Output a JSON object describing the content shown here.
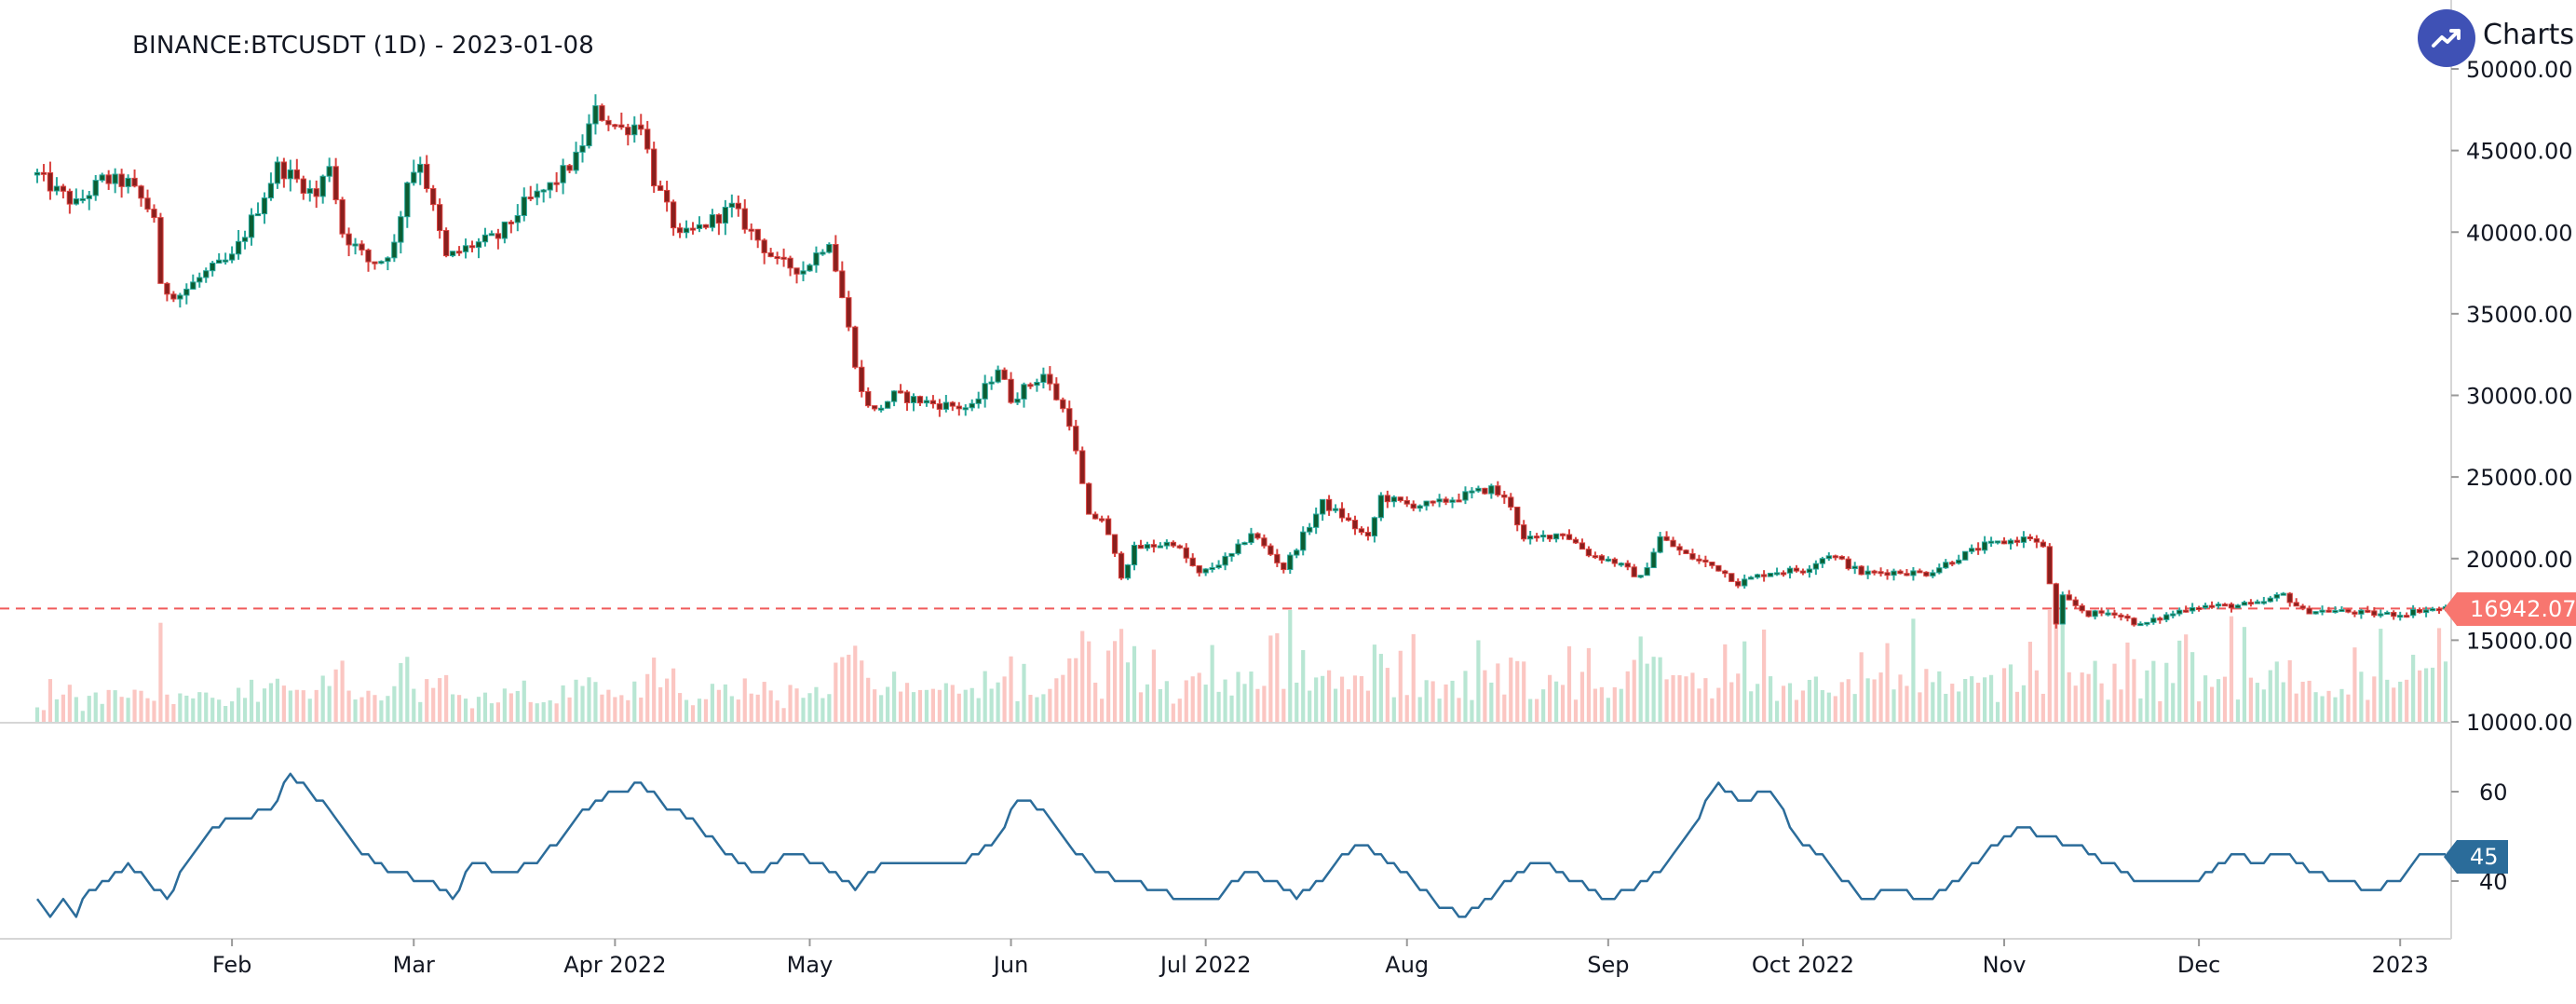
{
  "header": {
    "title": "BINANCE:BTCUSDT (1D) - 2023-01-08",
    "logo_text": "Charts p",
    "logo_icon": "trend-up-icon"
  },
  "colors": {
    "up": "#26a69a",
    "up_body": "#0b5e33",
    "down": "#d9413e",
    "down_body": "#8a1f1d",
    "vol_up": "#b8e6d3",
    "vol_down": "#fbc6c2",
    "last_price_line": "#f05a5a",
    "indicator": "#2b6c9a",
    "logo_bg": "#3f51b5"
  },
  "price_badge": "16942.07",
  "indicator_badge": "45",
  "chart_data": [
    {
      "type": "candlestick",
      "title": "BINANCE:BTCUSDT (1D) - 2023-01-08",
      "x_ticks": [
        "Feb",
        "Mar",
        "Apr 2022",
        "May",
        "Jun",
        "Jul 2022",
        "Aug",
        "Sep",
        "Oct 2022",
        "Nov",
        "Dec",
        "2023"
      ],
      "x_tick_dates": [
        "2022-02-01",
        "2022-03-01",
        "2022-04-01",
        "2022-05-01",
        "2022-06-01",
        "2022-07-01",
        "2022-08-01",
        "2022-09-01",
        "2022-10-01",
        "2022-11-01",
        "2022-12-01",
        "2023-01-01"
      ],
      "x_range": [
        "2022-01-02",
        "2023-01-08"
      ],
      "y_ticks": [
        "50000.00",
        "45000.00",
        "40000.00",
        "35000.00",
        "30000.00",
        "25000.00",
        "20000.00",
        "15000.00",
        "10000.00"
      ],
      "ylim": [
        10000,
        50000
      ],
      "last_price": 16942.07,
      "close_keypoints": [
        [
          "2022-01-02",
          43500
        ],
        [
          "2022-01-05",
          42500
        ],
        [
          "2022-01-08",
          41700
        ],
        [
          "2022-01-12",
          43200
        ],
        [
          "2022-01-16",
          43000
        ],
        [
          "2022-01-20",
          41000
        ],
        [
          "2022-01-21",
          36500
        ],
        [
          "2022-01-24",
          36200
        ],
        [
          "2022-01-28",
          37500
        ],
        [
          "2022-02-01",
          38400
        ],
        [
          "2022-02-05",
          41500
        ],
        [
          "2022-02-08",
          44000
        ],
        [
          "2022-02-10",
          43500
        ],
        [
          "2022-02-14",
          42200
        ],
        [
          "2022-02-16",
          44300
        ],
        [
          "2022-02-18",
          40000
        ],
        [
          "2022-02-22",
          38200
        ],
        [
          "2022-02-24",
          38300
        ],
        [
          "2022-02-26",
          39200
        ],
        [
          "2022-02-28",
          43200
        ],
        [
          "2022-03-02",
          44400
        ],
        [
          "2022-03-06",
          38400
        ],
        [
          "2022-03-10",
          39200
        ],
        [
          "2022-03-14",
          39700
        ],
        [
          "2022-03-18",
          41700
        ],
        [
          "2022-03-22",
          42800
        ],
        [
          "2022-03-26",
          44500
        ],
        [
          "2022-03-29",
          47400
        ],
        [
          "2022-04-02",
          46300
        ],
        [
          "2022-04-05",
          46700
        ],
        [
          "2022-04-07",
          43200
        ],
        [
          "2022-04-11",
          39600
        ],
        [
          "2022-04-15",
          40500
        ],
        [
          "2022-04-19",
          41500
        ],
        [
          "2022-04-21",
          40500
        ],
        [
          "2022-04-26",
          38100
        ],
        [
          "2022-04-30",
          37700
        ],
        [
          "2022-05-04",
          39600
        ],
        [
          "2022-05-06",
          36000
        ],
        [
          "2022-05-09",
          30100
        ],
        [
          "2022-05-11",
          29000
        ],
        [
          "2022-05-14",
          30000
        ],
        [
          "2022-05-20",
          29500
        ],
        [
          "2022-05-26",
          29200
        ],
        [
          "2022-05-30",
          31700
        ],
        [
          "2022-06-01",
          29800
        ],
        [
          "2022-06-06",
          31300
        ],
        [
          "2022-06-10",
          28400
        ],
        [
          "2022-06-13",
          22500
        ],
        [
          "2022-06-15",
          22500
        ],
        [
          "2022-06-18",
          19000
        ],
        [
          "2022-06-20",
          20600
        ],
        [
          "2022-06-26",
          21000
        ],
        [
          "2022-06-30",
          19000
        ],
        [
          "2022-07-05",
          20200
        ],
        [
          "2022-07-08",
          21600
        ],
        [
          "2022-07-13",
          19400
        ],
        [
          "2022-07-19",
          23400
        ],
        [
          "2022-07-22",
          22600
        ],
        [
          "2022-07-26",
          21200
        ],
        [
          "2022-07-28",
          23800
        ],
        [
          "2022-08-01",
          23300
        ],
        [
          "2022-08-05",
          23300
        ],
        [
          "2022-08-10",
          23900
        ],
        [
          "2022-08-14",
          24300
        ],
        [
          "2022-08-17",
          23300
        ],
        [
          "2022-08-19",
          21100
        ],
        [
          "2022-08-25",
          21600
        ],
        [
          "2022-08-29",
          20300
        ],
        [
          "2022-09-02",
          19800
        ],
        [
          "2022-09-06",
          18800
        ],
        [
          "2022-09-09",
          21300
        ],
        [
          "2022-09-13",
          20200
        ],
        [
          "2022-09-18",
          19400
        ],
        [
          "2022-09-21",
          18500
        ],
        [
          "2022-09-26",
          19200
        ],
        [
          "2022-10-01",
          19300
        ],
        [
          "2022-10-05",
          20300
        ],
        [
          "2022-10-10",
          19100
        ],
        [
          "2022-10-15",
          19200
        ],
        [
          "2022-10-20",
          19100
        ],
        [
          "2022-10-25",
          20100
        ],
        [
          "2022-10-29",
          20800
        ],
        [
          "2022-11-05",
          21300
        ],
        [
          "2022-11-07",
          20600
        ],
        [
          "2022-11-08",
          18500
        ],
        [
          "2022-11-09",
          15900
        ],
        [
          "2022-11-10",
          17600
        ],
        [
          "2022-11-14",
          16600
        ],
        [
          "2022-11-18",
          16700
        ],
        [
          "2022-11-22",
          15900
        ],
        [
          "2022-11-26",
          16500
        ],
        [
          "2022-11-30",
          17100
        ],
        [
          "2022-12-05",
          17100
        ],
        [
          "2022-12-10",
          17200
        ],
        [
          "2022-12-14",
          17800
        ],
        [
          "2022-12-17",
          16800
        ],
        [
          "2022-12-22",
          16800
        ],
        [
          "2022-12-28",
          16600
        ],
        [
          "2023-01-01",
          16600
        ],
        [
          "2023-01-04",
          16850
        ],
        [
          "2023-01-08",
          16942
        ]
      ]
    },
    {
      "type": "line",
      "name": "indicator",
      "y_ticks": [
        "60",
        "40"
      ],
      "ylim": [
        25,
        75
      ],
      "last_value": 45,
      "keypoints": [
        [
          "2022-01-02",
          36
        ],
        [
          "2022-01-04",
          32
        ],
        [
          "2022-01-06",
          36
        ],
        [
          "2022-01-08",
          32
        ],
        [
          "2022-01-10",
          38
        ],
        [
          "2022-01-13",
          40
        ],
        [
          "2022-01-16",
          44
        ],
        [
          "2022-01-20",
          38
        ],
        [
          "2022-01-22",
          36
        ],
        [
          "2022-01-25",
          44
        ],
        [
          "2022-01-29",
          52
        ],
        [
          "2022-02-02",
          54
        ],
        [
          "2022-02-07",
          56
        ],
        [
          "2022-02-10",
          64
        ],
        [
          "2022-02-13",
          60
        ],
        [
          "2022-02-16",
          56
        ],
        [
          "2022-02-20",
          48
        ],
        [
          "2022-02-25",
          42
        ],
        [
          "2022-03-03",
          40
        ],
        [
          "2022-03-07",
          36
        ],
        [
          "2022-03-10",
          44
        ],
        [
          "2022-03-15",
          42
        ],
        [
          "2022-03-20",
          44
        ],
        [
          "2022-03-25",
          52
        ],
        [
          "2022-03-29",
          58
        ],
        [
          "2022-04-02",
          60
        ],
        [
          "2022-04-05",
          62
        ],
        [
          "2022-04-09",
          56
        ],
        [
          "2022-04-13",
          54
        ],
        [
          "2022-04-18",
          46
        ],
        [
          "2022-04-23",
          42
        ],
        [
          "2022-04-28",
          46
        ],
        [
          "2022-05-03",
          44
        ],
        [
          "2022-05-08",
          38
        ],
        [
          "2022-05-12",
          44
        ],
        [
          "2022-05-18",
          44
        ],
        [
          "2022-05-25",
          44
        ],
        [
          "2022-05-30",
          50
        ],
        [
          "2022-06-02",
          58
        ],
        [
          "2022-06-06",
          56
        ],
        [
          "2022-06-10",
          48
        ],
        [
          "2022-06-14",
          42
        ],
        [
          "2022-06-19",
          40
        ],
        [
          "2022-06-23",
          38
        ],
        [
          "2022-06-28",
          36
        ],
        [
          "2022-07-03",
          36
        ],
        [
          "2022-07-07",
          42
        ],
        [
          "2022-07-11",
          40
        ],
        [
          "2022-07-15",
          36
        ],
        [
          "2022-07-20",
          42
        ],
        [
          "2022-07-24",
          48
        ],
        [
          "2022-07-28",
          46
        ],
        [
          "2022-08-02",
          40
        ],
        [
          "2022-08-06",
          34
        ],
        [
          "2022-08-10",
          32
        ],
        [
          "2022-08-14",
          36
        ],
        [
          "2022-08-18",
          42
        ],
        [
          "2022-08-22",
          44
        ],
        [
          "2022-08-27",
          40
        ],
        [
          "2022-09-01",
          36
        ],
        [
          "2022-09-05",
          38
        ],
        [
          "2022-09-10",
          44
        ],
        [
          "2022-09-14",
          52
        ],
        [
          "2022-09-18",
          62
        ],
        [
          "2022-09-21",
          58
        ],
        [
          "2022-09-26",
          60
        ],
        [
          "2022-09-30",
          50
        ],
        [
          "2022-10-05",
          44
        ],
        [
          "2022-10-10",
          36
        ],
        [
          "2022-10-15",
          38
        ],
        [
          "2022-10-20",
          36
        ],
        [
          "2022-10-25",
          40
        ],
        [
          "2022-10-29",
          46
        ],
        [
          "2022-11-03",
          52
        ],
        [
          "2022-11-07",
          50
        ],
        [
          "2022-11-12",
          48
        ],
        [
          "2022-11-17",
          44
        ],
        [
          "2022-11-21",
          40
        ],
        [
          "2022-11-26",
          40
        ],
        [
          "2022-12-01",
          40
        ],
        [
          "2022-12-06",
          46
        ],
        [
          "2022-12-10",
          44
        ],
        [
          "2022-12-14",
          46
        ],
        [
          "2022-12-18",
          42
        ],
        [
          "2022-12-23",
          40
        ],
        [
          "2022-12-28",
          38
        ],
        [
          "2023-01-01",
          40
        ],
        [
          "2023-01-04",
          45
        ],
        [
          "2023-01-08",
          45
        ]
      ]
    }
  ]
}
